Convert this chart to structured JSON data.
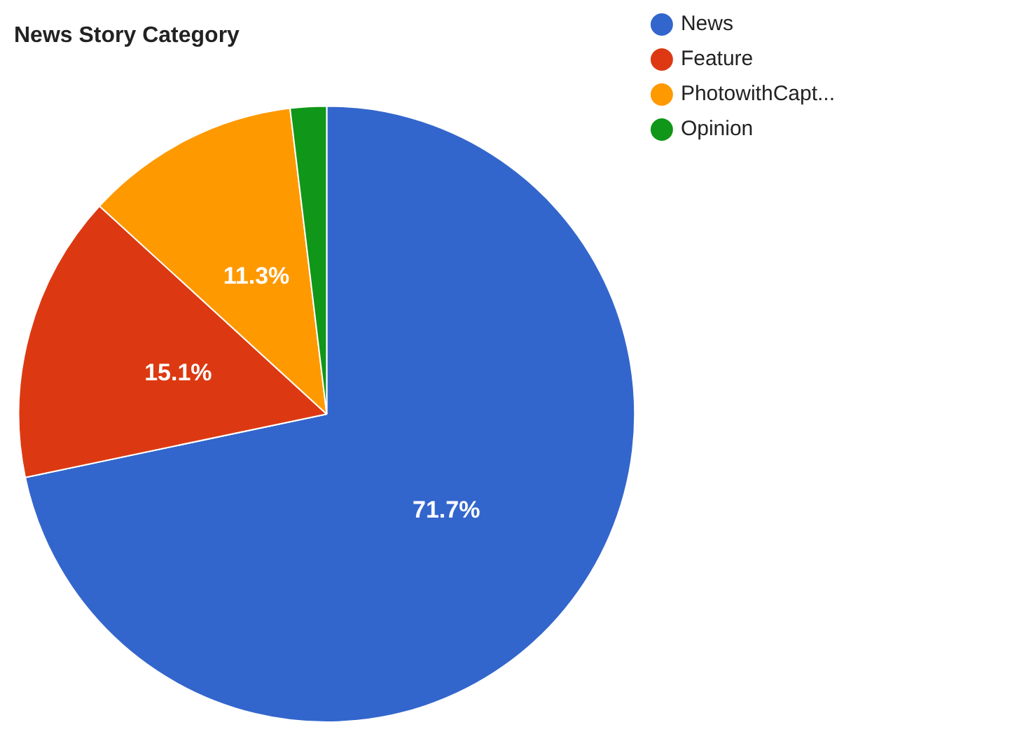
{
  "chart_data": {
    "type": "pie",
    "title": "News Story Category",
    "categories": [
      "News",
      "Feature",
      "PhotowithCapt...",
      "Opinion"
    ],
    "values": [
      71.7,
      15.1,
      11.3,
      1.9
    ],
    "colors": [
      "#3366cc",
      "#dc3912",
      "#ff9900",
      "#109618"
    ],
    "value_labels": [
      "71.7%",
      "15.1%",
      "11.3%",
      null
    ],
    "legend": "top right"
  }
}
